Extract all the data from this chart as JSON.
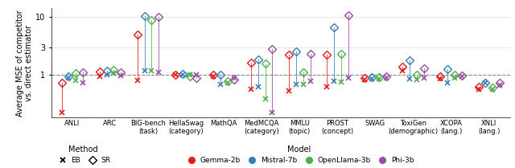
{
  "categories": [
    "ANLI",
    "ARC",
    "BIG-bench\n(task)",
    "HellaSwag\n(category)",
    "MathQA",
    "MedMCQA\n(category)",
    "MMLU\n(topic)",
    "PROST\n(concept)",
    "SWAG",
    "ToxiGen\n(demographic)",
    "XCOPA\n(lang.)",
    "XNLI\n(lang.)"
  ],
  "models": [
    "Gemma-2b",
    "Mistral-7b",
    "OpenLlama-3b",
    "Phi-3b"
  ],
  "model_colors": [
    "#e41a1c",
    "#377eb8",
    "#4daf4a",
    "#984ea3"
  ],
  "eb_values": [
    [
      0.22,
      0.88,
      0.8,
      0.72
    ],
    [
      0.92,
      1.0,
      1.05,
      0.95
    ],
    [
      0.8,
      1.15,
      1.15,
      1.1
    ],
    [
      0.98,
      1.0,
      0.98,
      0.98
    ],
    [
      0.92,
      0.68,
      0.72,
      0.88
    ],
    [
      0.55,
      0.62,
      0.38,
      0.22
    ],
    [
      0.52,
      0.68,
      0.68,
      0.78
    ],
    [
      0.62,
      0.78,
      0.75,
      0.88
    ],
    [
      0.82,
      0.85,
      0.85,
      0.88
    ],
    [
      1.15,
      0.85,
      0.82,
      0.88
    ],
    [
      0.85,
      0.72,
      0.88,
      0.92
    ],
    [
      0.55,
      0.72,
      0.55,
      0.65
    ]
  ],
  "sr_values": [
    [
      0.72,
      0.92,
      1.05,
      1.1
    ],
    [
      1.12,
      1.15,
      1.2,
      1.1
    ],
    [
      5.0,
      10.2,
      8.8,
      10.1
    ],
    [
      0.98,
      1.02,
      0.92,
      0.88
    ],
    [
      0.98,
      1.0,
      0.78,
      0.82
    ],
    [
      1.6,
      1.85,
      1.55,
      2.8
    ],
    [
      2.2,
      2.55,
      1.1,
      2.3
    ],
    [
      2.2,
      6.5,
      2.3,
      10.5
    ],
    [
      0.88,
      0.9,
      0.9,
      0.92
    ],
    [
      1.38,
      1.75,
      1.0,
      1.3
    ],
    [
      0.92,
      1.25,
      1.0,
      0.95
    ],
    [
      0.62,
      0.72,
      0.6,
      0.72
    ]
  ],
  "ylabel": "Average MSE of competitor\nvs. direct estimator",
  "ylim_log": [
    0.18,
    14
  ],
  "yticks": [
    1,
    3,
    10
  ],
  "ytick_labels": [
    "1",
    "3",
    "10"
  ],
  "hline_y": 1.0,
  "grid_color": "#dddddd"
}
